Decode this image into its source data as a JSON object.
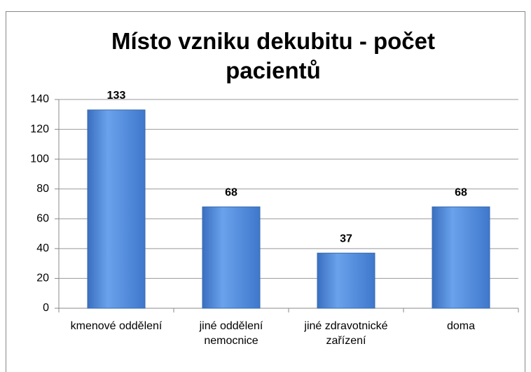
{
  "chart_data": {
    "type": "bar",
    "title": "Místo vzniku dekubitu - počet pacientů",
    "categories": [
      "kmenové oddělení",
      "jiné oddělení nemocnice",
      "jiné zdravotnické zařízení",
      "doma"
    ],
    "values": [
      133,
      68,
      37,
      68
    ],
    "color": "#4f8be0",
    "ylim": [
      0,
      140
    ],
    "yticks": [
      0,
      20,
      40,
      60,
      80,
      100,
      120,
      140
    ],
    "grid": true
  }
}
